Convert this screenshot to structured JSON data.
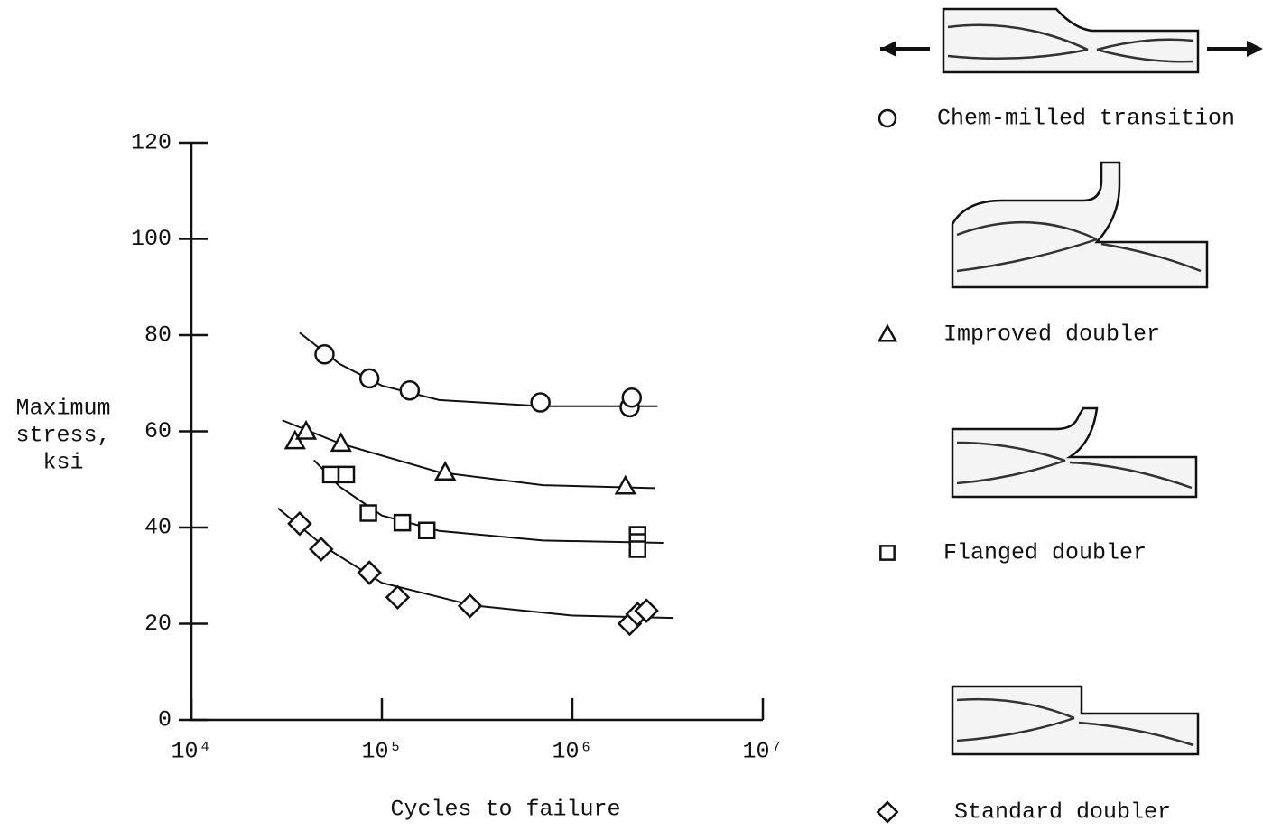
{
  "chart_data": {
    "type": "scatter",
    "xlabel": "Cycles to failure",
    "ylabel": [
      "Maximum",
      "stress,",
      "ksi"
    ],
    "xscale": "log",
    "xlim": [
      10000,
      10000000
    ],
    "xticks": [
      {
        "value": 10000,
        "label": "10⁴"
      },
      {
        "value": 100000,
        "label": "10⁵"
      },
      {
        "value": 1000000,
        "label": "10⁶"
      },
      {
        "value": 10000000,
        "label": "10⁷"
      }
    ],
    "ylim": [
      0,
      120
    ],
    "yticks": [
      0,
      20,
      40,
      60,
      80,
      100,
      120
    ],
    "series": [
      {
        "name": "Chem-milled transition",
        "marker": "circle",
        "color": "#111111",
        "x": [
          50000,
          86000,
          140000,
          680000,
          2000000,
          2050000
        ],
        "values": [
          76,
          71,
          68.5,
          66,
          65,
          67
        ],
        "curve": {
          "x": [
            37000,
            60000,
            100000,
            200000,
            700000,
            2800000
          ],
          "values": [
            80.5,
            74,
            69.5,
            66.5,
            65.2,
            65.2
          ]
        }
      },
      {
        "name": "Improved doubler",
        "marker": "triangle",
        "color": "#111111",
        "x": [
          35000,
          40000,
          61000,
          215000,
          1900000
        ],
        "values": [
          58,
          60,
          57.5,
          51.5,
          48.6
        ],
        "curve": {
          "x": [
            30000,
            60000,
            200000,
            700000,
            2700000
          ],
          "values": [
            62.3,
            57.5,
            51.5,
            48.8,
            48.2
          ]
        }
      },
      {
        "name": "Flanged doubler",
        "marker": "square",
        "color": "#111111",
        "x": [
          54000,
          65000,
          85000,
          128000,
          172000,
          2200000,
          2200000,
          2200000
        ],
        "values": [
          51,
          51,
          43,
          41,
          39.4,
          38.5,
          37,
          35.5
        ],
        "curve": {
          "x": [
            44000,
            60000,
            100000,
            200000,
            700000,
            3000000
          ],
          "values": [
            54,
            48.5,
            42.5,
            39.3,
            37.3,
            36.8
          ]
        }
      },
      {
        "name": "Standard doubler",
        "marker": "diamond",
        "color": "#111111",
        "x": [
          37000,
          48000,
          86000,
          121000,
          290000,
          2000000,
          2200000,
          2450000
        ],
        "values": [
          40.8,
          35.5,
          30.6,
          25.5,
          23.7,
          20,
          22,
          22.7
        ],
        "curve": {
          "x": [
            28500,
            50000,
            100000,
            300000,
            1000000,
            3400000
          ],
          "values": [
            44,
            36,
            28.5,
            23.8,
            21.7,
            21.2
          ]
        }
      }
    ]
  }
}
